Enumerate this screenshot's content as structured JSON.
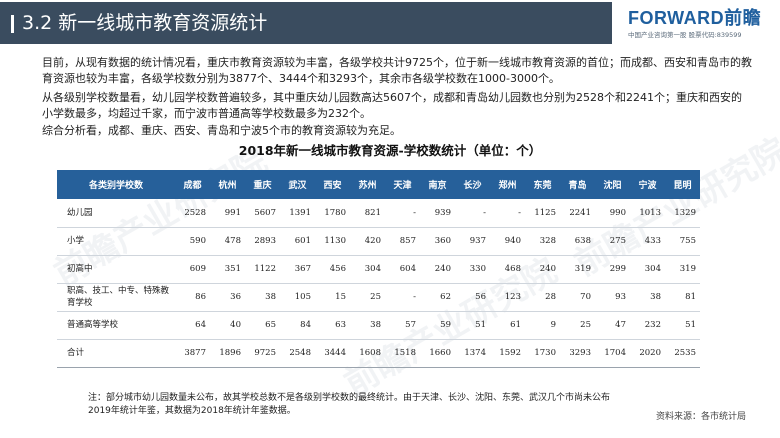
{
  "header": {
    "title": "3.2  新一线城市教育资源统计",
    "logo_main": "FORWARD前瞻",
    "logo_sub": "中国产业咨询第一股  股票代码:839599"
  },
  "paragraphs": [
    "目前，从现有数据的统计情况看，重庆市教育资源较为丰富，各级学校共计9725个，位于新一线城市教育资源的首位；而成都、西安和青岛市的教育资源也较为丰富，各级学校数分别为3877个、3444个和3293个，其余市各级学校数在1000-3000个。",
    "从各级别学校数量看，幼儿园学校数普遍较多，其中重庆幼儿园数高达5607个，成都和青岛幼儿园数也分别为2528个和2241个；重庆和西安的小学数最多，均超过千家，而宁波市普通高等学校数最多为232个。",
    "综合分析看，成都、重庆、西安、青岛和宁波5个市的教育资源较为充足。"
  ],
  "table": {
    "title": "2018年新一线城市教育资源-学校数统计（单位：个）",
    "corner_header": "各类别学校数",
    "cities": [
      "成都",
      "杭州",
      "重庆",
      "武汉",
      "西安",
      "苏州",
      "天津",
      "南京",
      "长沙",
      "郑州",
      "东莞",
      "青岛",
      "沈阳",
      "宁波",
      "昆明"
    ],
    "rows": [
      {
        "label": "幼儿园",
        "values": [
          "2528",
          "991",
          "5607",
          "1391",
          "1780",
          "821",
          "-",
          "939",
          "-",
          "-",
          "1125",
          "2241",
          "990",
          "1013",
          "1329"
        ]
      },
      {
        "label": "小学",
        "values": [
          "590",
          "478",
          "2893",
          "601",
          "1130",
          "420",
          "857",
          "360",
          "937",
          "940",
          "328",
          "638",
          "275",
          "433",
          "755"
        ]
      },
      {
        "label": "初高中",
        "values": [
          "609",
          "351",
          "1122",
          "367",
          "456",
          "304",
          "604",
          "240",
          "330",
          "468",
          "240",
          "319",
          "299",
          "304",
          "319"
        ]
      },
      {
        "label": "职高、技工、中专、特殊教育学校",
        "values": [
          "86",
          "36",
          "38",
          "105",
          "15",
          "25",
          "-",
          "62",
          "56",
          "123",
          "28",
          "70",
          "93",
          "38",
          "81"
        ]
      },
      {
        "label": "普通高等学校",
        "values": [
          "64",
          "40",
          "65",
          "84",
          "63",
          "38",
          "57",
          "59",
          "51",
          "61",
          "9",
          "25",
          "47",
          "232",
          "51"
        ]
      },
      {
        "label": "合计",
        "values": [
          "3877",
          "1896",
          "9725",
          "2548",
          "3444",
          "1608",
          "1518",
          "1660",
          "1374",
          "1592",
          "1730",
          "3293",
          "1704",
          "2020",
          "2535"
        ]
      }
    ]
  },
  "note": "注：部分城市幼儿园数量未公布，故其学校总数不是各级别学校数的最终统计。由于天津、长沙、沈阳、东莞、武汉几个市尚未公布2019年统计年鉴，其数据为2018年统计年鉴数据。",
  "source": "资料来源：各市统计局",
  "watermark_text": "前瞻产业研究院",
  "colors": {
    "title_bar": "#3a4c5f",
    "table_header": "#26609a",
    "logo": "#1f5f9e"
  }
}
